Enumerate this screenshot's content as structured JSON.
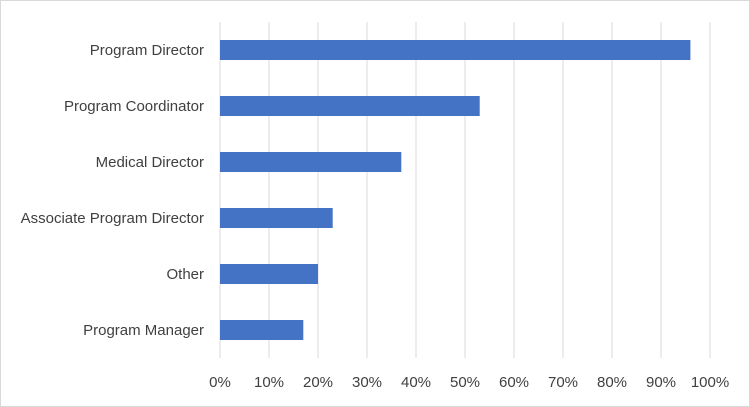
{
  "chart_data": {
    "type": "bar",
    "orientation": "horizontal",
    "title": "",
    "xlabel": "",
    "ylabel": "",
    "categories": [
      "Program Director",
      "Program Coordinator",
      "Medical Director",
      "Associate Program Director",
      "Other",
      "Program Manager"
    ],
    "values": [
      96,
      53,
      37,
      23,
      20,
      17
    ],
    "xlim": [
      0,
      100
    ],
    "x_ticks": [
      0,
      10,
      20,
      30,
      40,
      50,
      60,
      70,
      80,
      90,
      100
    ],
    "x_tick_labels": [
      "0%",
      "10%",
      "20%",
      "30%",
      "40%",
      "50%",
      "60%",
      "70%",
      "80%",
      "90%",
      "100%"
    ],
    "grid": "vertical",
    "legend": "none",
    "bar_color": "#4472c4",
    "grid_color": "#d9d9d9"
  }
}
